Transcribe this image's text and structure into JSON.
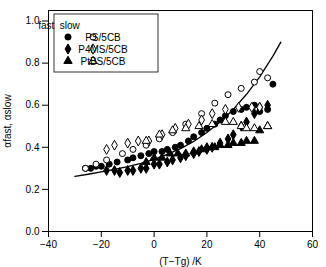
{
  "chart_data": {
    "type": "scatter",
    "xlabel": "(T−Tg) /K",
    "ylabel": "αfast, αslow",
    "xlim": [
      -40,
      60
    ],
    "ylim": [
      0,
      1.05
    ],
    "xticks": [
      -40,
      -20,
      0,
      20,
      40,
      60
    ],
    "yticks": [
      {
        "value": 0,
        "label": "0.0"
      },
      0.2,
      0.4,
      0.6,
      0.8,
      {
        "value": 1.0,
        "label": "1.0"
      }
    ],
    "grid": false,
    "legend": "upper left",
    "legend_title": "fast  slow",
    "series": [
      {
        "name": "PS/5CB",
        "type": "scatter",
        "marker": "circle",
        "color": "black",
        "x": [
          -26,
          -24,
          -22,
          -20,
          -17,
          -14,
          -10,
          -8,
          -5,
          -2,
          0,
          3,
          5,
          8,
          10,
          13,
          15,
          18,
          20,
          23,
          25,
          27,
          30,
          33,
          35,
          38,
          40,
          43,
          45
        ],
        "values": [
          0.3,
          0.3,
          0.31,
          0.31,
          0.32,
          0.33,
          0.34,
          0.35,
          0.36,
          0.37,
          0.38,
          0.38,
          0.39,
          0.4,
          0.41,
          0.43,
          0.45,
          0.47,
          0.49,
          0.51,
          0.53,
          0.55,
          0.57,
          0.58,
          0.59,
          0.6,
          0.57,
          0.58,
          0.7
        ]
      },
      {
        "name": "PS/5CB",
        "type": "scatter",
        "marker": "circle-open",
        "color": "black",
        "x": [
          -26,
          -22,
          -18,
          -12,
          -8,
          -3,
          2,
          7,
          12,
          18,
          23,
          28,
          33,
          38,
          40,
          43
        ],
        "values": [
          0.3,
          0.32,
          0.34,
          0.37,
          0.39,
          0.41,
          0.44,
          0.47,
          0.51,
          0.56,
          0.61,
          0.65,
          0.68,
          0.71,
          0.76,
          0.73
        ]
      },
      {
        "name": "P4MS/5CB",
        "type": "scatter",
        "marker": "diamond",
        "color": "black",
        "x": [
          -18,
          -15,
          -13,
          -10,
          -8,
          -5,
          -3,
          0,
          2,
          5,
          7,
          10,
          12,
          15,
          17,
          20,
          22,
          25,
          28,
          30,
          33,
          35,
          38,
          40,
          43
        ],
        "values": [
          0.29,
          0.29,
          0.28,
          0.29,
          0.29,
          0.3,
          0.3,
          0.32,
          0.32,
          0.33,
          0.34,
          0.35,
          0.36,
          0.37,
          0.38,
          0.39,
          0.4,
          0.42,
          0.44,
          0.46,
          0.5,
          0.52,
          0.56,
          0.59,
          0.6
        ]
      },
      {
        "name": "P4MS/5CB",
        "type": "scatter",
        "marker": "diamond-open",
        "color": "black",
        "x": [
          -18,
          -15,
          -10,
          -6,
          -2,
          3,
          8,
          13,
          18,
          22,
          27,
          32,
          37,
          40
        ],
        "values": [
          0.39,
          0.41,
          0.42,
          0.43,
          0.43,
          0.46,
          0.49,
          0.51,
          0.53,
          0.56,
          0.58,
          0.59,
          0.59,
          0.59
        ]
      },
      {
        "name": "PtBS/5CB",
        "type": "scatter",
        "marker": "triangle",
        "color": "black",
        "x": [
          -3,
          0,
          3,
          6,
          9,
          12,
          15,
          18,
          20,
          23,
          25,
          28,
          30,
          33,
          35,
          38,
          40,
          43
        ],
        "values": [
          0.33,
          0.35,
          0.35,
          0.37,
          0.37,
          0.37,
          0.38,
          0.39,
          0.4,
          0.4,
          0.41,
          0.41,
          0.42,
          0.42,
          0.43,
          0.43,
          0.48,
          0.5
        ]
      },
      {
        "name": "PtBS/5CB",
        "type": "scatter",
        "marker": "triangle-open",
        "color": "black",
        "x": [
          -3,
          2,
          7,
          12,
          17,
          22,
          27,
          30,
          33,
          35,
          38,
          43
        ],
        "values": [
          0.43,
          0.46,
          0.48,
          0.49,
          0.5,
          0.51,
          0.52,
          0.52,
          0.5,
          0.49,
          0.49,
          0.5
        ]
      },
      {
        "type": "line",
        "line_style": "solid",
        "color": "black",
        "x": [
          -30,
          -25,
          -20,
          -15,
          -10,
          -5,
          0,
          5,
          10,
          15,
          20,
          25,
          30,
          35,
          40,
          45,
          48
        ],
        "values": [
          0.262,
          0.272,
          0.283,
          0.295,
          0.308,
          0.324,
          0.343,
          0.366,
          0.394,
          0.428,
          0.47,
          0.52,
          0.58,
          0.652,
          0.735,
          0.833,
          0.9
        ]
      }
    ]
  }
}
